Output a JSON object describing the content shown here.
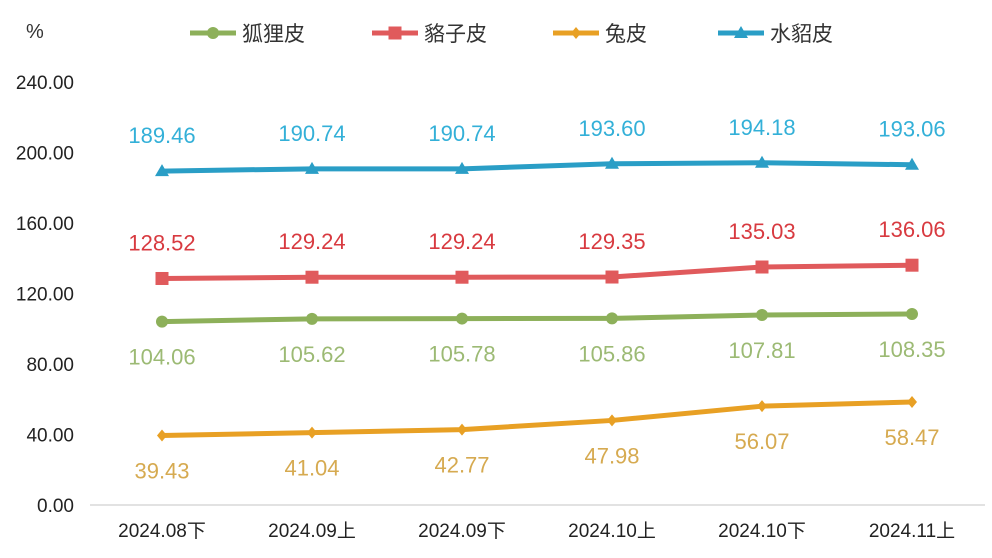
{
  "chart_data": {
    "type": "line",
    "title": "",
    "xlabel": "",
    "ylabel": "%",
    "ylim": [
      0,
      240
    ],
    "yticks": [
      "0.00",
      "40.00",
      "80.00",
      "120.00",
      "160.00",
      "200.00",
      "240.00"
    ],
    "ytick_values": [
      0,
      40,
      80,
      120,
      160,
      200,
      240
    ],
    "grid": false,
    "legend_position": "top",
    "categories": [
      "2024.08下",
      "2024.09上",
      "2024.09下",
      "2024.10上",
      "2024.10下",
      "2024.11上"
    ],
    "series": [
      {
        "name": "狐狸皮",
        "marker": "circle",
        "color": "#8db05a",
        "label_color": "#9cba74",
        "label_position": "below",
        "values": [
          104.06,
          105.62,
          105.78,
          105.86,
          107.81,
          108.35
        ]
      },
      {
        "name": "貉子皮",
        "marker": "square",
        "color": "#e05a5c",
        "label_color": "#d83a40",
        "label_position": "above",
        "values": [
          128.52,
          129.24,
          129.24,
          129.35,
          135.03,
          136.06
        ]
      },
      {
        "name": "兔皮",
        "marker": "diamond",
        "color": "#e8a024",
        "label_color": "#d6aa50",
        "label_position": "below",
        "values": [
          39.43,
          41.04,
          42.77,
          47.98,
          56.07,
          58.47
        ]
      },
      {
        "name": "水貂皮",
        "marker": "triangle",
        "color": "#2a9ec6",
        "label_color": "#33b0d8",
        "label_position": "above",
        "values": [
          189.46,
          190.74,
          190.74,
          193.6,
          194.18,
          193.06
        ]
      }
    ]
  }
}
